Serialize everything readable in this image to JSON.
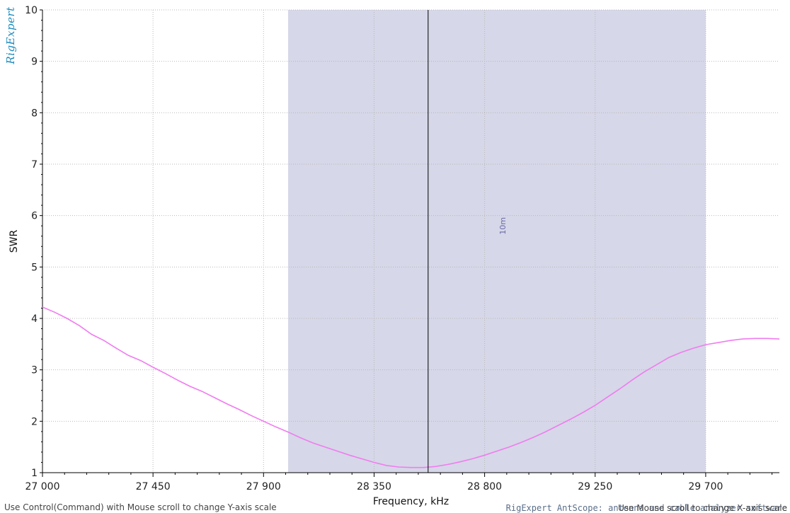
{
  "app": {
    "logo_text": "RigExpert",
    "status_left": "Use Control(Command) with Mouse scroll to change Y-axis scale",
    "status_right": "RigExpert AntScope: antenna and cable analyzer software",
    "status_right_overlay": "Use Mouse scroll to change X-axis scale"
  },
  "chart_data": {
    "type": "line",
    "title": "",
    "xlabel": "Frequency, kHz",
    "ylabel": "SWR",
    "xlim": [
      27000,
      30000
    ],
    "ylim": [
      1,
      10
    ],
    "xticks": [
      27000,
      27450,
      27900,
      28350,
      28800,
      29250,
      29700
    ],
    "xtick_labels": [
      "27 000",
      "27 450",
      "27 900",
      "28 350",
      "28 800",
      "29 250",
      "29 700"
    ],
    "yticks": [
      1,
      2,
      3,
      4,
      5,
      6,
      7,
      8,
      9,
      10
    ],
    "ytick_labels": [
      "1",
      "2",
      "3",
      "4",
      "5",
      "6",
      "7",
      "8",
      "9",
      "10"
    ],
    "grid": true,
    "band": {
      "label": "10m",
      "start": 28000,
      "end": 29700,
      "color": "#d6d7e8"
    },
    "marker_x": 28570,
    "series": [
      {
        "color": "#f07cf0",
        "x": [
          27000,
          27050,
          27100,
          27150,
          27200,
          27250,
          27300,
          27350,
          27400,
          27450,
          27500,
          27550,
          27600,
          27650,
          27700,
          27750,
          27800,
          27850,
          27900,
          27950,
          28000,
          28050,
          28100,
          28150,
          28200,
          28250,
          28300,
          28350,
          28400,
          28450,
          28500,
          28550,
          28600,
          28650,
          28700,
          28750,
          28800,
          28850,
          28900,
          28950,
          29000,
          29050,
          29100,
          29150,
          29200,
          29250,
          29300,
          29350,
          29400,
          29450,
          29500,
          29550,
          29600,
          29650,
          29700,
          29750,
          29800,
          29850,
          29900,
          29950,
          30000
        ],
        "y": [
          4.22,
          4.12,
          4.0,
          3.86,
          3.69,
          3.57,
          3.42,
          3.28,
          3.18,
          3.05,
          2.93,
          2.8,
          2.68,
          2.58,
          2.46,
          2.34,
          2.23,
          2.11,
          2.0,
          1.89,
          1.79,
          1.68,
          1.58,
          1.5,
          1.42,
          1.34,
          1.27,
          1.2,
          1.14,
          1.11,
          1.1,
          1.1,
          1.12,
          1.16,
          1.21,
          1.27,
          1.34,
          1.42,
          1.5,
          1.59,
          1.69,
          1.8,
          1.92,
          2.04,
          2.17,
          2.31,
          2.47,
          2.63,
          2.8,
          2.96,
          3.1,
          3.24,
          3.34,
          3.42,
          3.49,
          3.53,
          3.57,
          3.6,
          3.61,
          3.61,
          3.6
        ]
      }
    ]
  }
}
